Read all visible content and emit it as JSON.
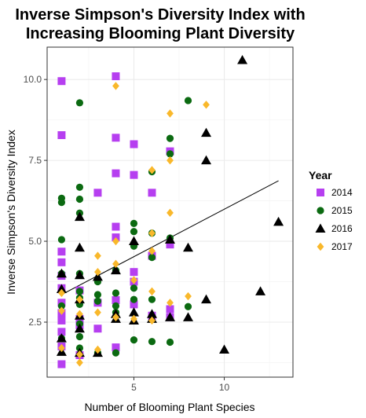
{
  "chart_data": {
    "type": "scatter",
    "title_lines": [
      "Inverse Simpson's Diversity Index with",
      "Increasing Blooming Plant Diversity"
    ],
    "xlabel": "Number of Blooming Plant Species",
    "ylabel": "Inverse Simpson's Diversity Index",
    "xlim": [
      0.2,
      13.8
    ],
    "ylim": [
      0.8,
      11.0
    ],
    "x_ticks": [
      5,
      10
    ],
    "x_tick_labels": [
      "5",
      "10"
    ],
    "y_ticks": [
      2.5,
      5.0,
      7.5,
      10.0
    ],
    "y_tick_labels": [
      "2.5",
      "5.0",
      "7.5",
      "10.0"
    ],
    "grid": true,
    "legend": {
      "title": "Year",
      "position": "right"
    },
    "trend_line": {
      "x": [
        1,
        13
      ],
      "y": [
        3.35,
        6.87
      ],
      "color": "#000000"
    },
    "series": [
      {
        "name": "2014",
        "shape": "square",
        "color": "#b63ff0",
        "x": [
          1,
          1,
          1,
          1,
          1,
          1,
          1,
          1,
          1,
          1,
          1,
          1,
          2,
          2,
          2,
          2,
          3,
          3,
          3,
          4,
          4,
          4,
          4,
          4,
          4,
          4,
          5,
          5,
          5,
          5,
          5,
          6,
          6,
          6,
          7,
          7,
          7,
          7
        ],
        "y": [
          9.95,
          8.28,
          4.68,
          4.35,
          3.93,
          3.55,
          3.1,
          2.78,
          2.55,
          2.2,
          1.75,
          1.2,
          3.48,
          2.4,
          1.48,
          2.6,
          6.5,
          3.1,
          2.3,
          10.1,
          8.2,
          7.1,
          5.45,
          5.12,
          3.18,
          1.72,
          8.0,
          7.05,
          4.05,
          3.75,
          3.05,
          6.5,
          4.55,
          2.7,
          7.78,
          4.9,
          2.9,
          2.65
        ]
      },
      {
        "name": "2015",
        "shape": "circle",
        "color": "#0b6a11",
        "x": [
          1,
          1,
          1,
          1,
          1,
          1,
          2,
          2,
          2,
          2,
          2,
          2,
          2,
          2,
          2,
          2,
          2,
          3,
          3,
          3,
          3,
          4,
          4,
          4,
          4,
          4,
          5,
          5,
          5,
          5,
          5,
          5,
          6,
          6,
          6,
          6,
          6,
          7,
          7,
          7,
          7,
          8,
          8
        ],
        "y": [
          6.33,
          6.2,
          5.05,
          4.0,
          3.0,
          2.0,
          9.28,
          6.67,
          6.3,
          5.87,
          4.0,
          3.45,
          3.25,
          3.05,
          2.45,
          2.05,
          1.7,
          3.75,
          3.35,
          3.15,
          1.55,
          4.1,
          3.0,
          2.8,
          1.55,
          3.4,
          5.55,
          5.3,
          4.85,
          3.55,
          3.2,
          1.95,
          7.15,
          5.25,
          4.5,
          3.2,
          1.9,
          8.18,
          7.7,
          5.1,
          1.88,
          9.35,
          2.98
        ]
      },
      {
        "name": "2016",
        "shape": "triangle",
        "color": "#000000",
        "x": [
          1,
          1,
          1,
          1,
          2,
          2,
          2,
          2,
          2,
          2,
          2,
          3,
          3,
          4,
          4,
          4,
          5,
          5,
          5,
          6,
          6,
          7,
          7,
          8,
          8,
          9,
          9,
          9,
          10,
          11,
          12,
          13
        ],
        "y": [
          4.0,
          3.52,
          2.0,
          1.58,
          5.75,
          4.8,
          3.95,
          3.2,
          2.7,
          2.3,
          1.55,
          3.9,
          1.55,
          4.1,
          2.75,
          2.6,
          5.0,
          2.8,
          2.55,
          2.6,
          2.75,
          5.05,
          2.65,
          4.8,
          2.65,
          8.35,
          7.5,
          3.2,
          1.65,
          10.6,
          3.45,
          5.6
        ]
      },
      {
        "name": "2017",
        "shape": "diamond",
        "color": "#f9b82b",
        "x": [
          1,
          1,
          1,
          2,
          2,
          2,
          2,
          3,
          3,
          3,
          3,
          4,
          4,
          4,
          4,
          5,
          5,
          6,
          6,
          6,
          6,
          6,
          7,
          7,
          7,
          7,
          8,
          9
        ],
        "y": [
          3.4,
          2.85,
          1.7,
          3.2,
          2.75,
          1.5,
          1.25,
          4.55,
          4.05,
          2.8,
          1.65,
          9.8,
          5.0,
          4.3,
          2.65,
          3.8,
          2.6,
          7.2,
          5.25,
          4.7,
          3.45,
          2.55,
          8.95,
          7.5,
          5.88,
          3.1,
          3.3,
          9.22
        ]
      }
    ]
  }
}
